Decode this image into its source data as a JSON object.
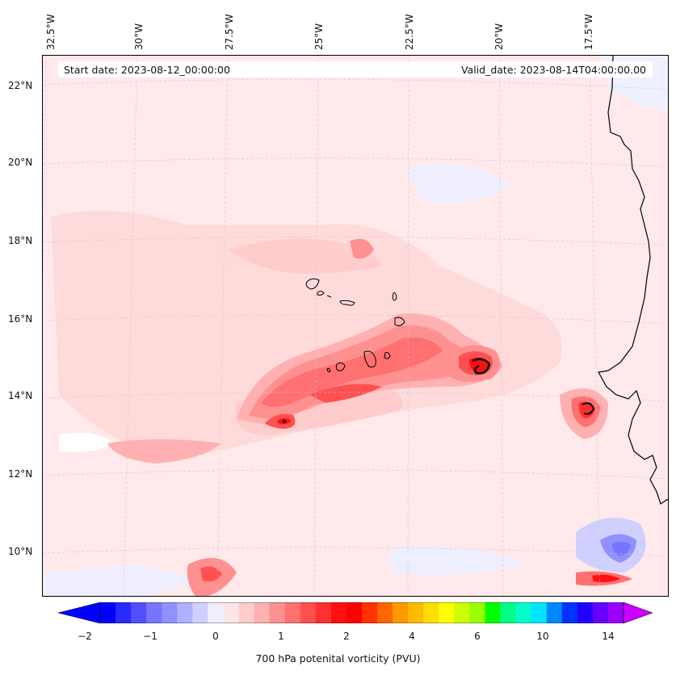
{
  "header": {
    "start_date": "Start date: 2023-08-12_00:00:00",
    "valid_date": "Valid_date: 2023-08-14T04:00:00.00"
  },
  "longitude_labels": [
    "32.5°W",
    "30°W",
    "27.5°W",
    "25°W",
    "22.5°W",
    "20°W",
    "17.5°W"
  ],
  "latitude_labels": [
    "22°N",
    "20°N",
    "18°N",
    "16°N",
    "14°N",
    "12°N",
    "10°N"
  ],
  "colorbar": {
    "label": "700 hPa potenital vorticity (PVU)",
    "ticks": [
      "−2",
      "−1",
      "0",
      "1",
      "2",
      "4",
      "6",
      "10",
      "14"
    ],
    "colors": [
      "#0000ff",
      "#2a2aff",
      "#5050ff",
      "#7575ff",
      "#9090ff",
      "#b0b0ff",
      "#d0d0ff",
      "#eeeeff",
      "#ffe6e6",
      "#ffcccc",
      "#ffb0b0",
      "#ff9090",
      "#ff7070",
      "#ff5050",
      "#ff3030",
      "#ff1010",
      "#ff0000",
      "#ff3300",
      "#ff6600",
      "#ff9900",
      "#ffbb00",
      "#ffdd00",
      "#ffff00",
      "#ccff00",
      "#99ff00",
      "#00ff00",
      "#00ff88",
      "#00ffcc",
      "#00e5ff",
      "#0088ff",
      "#0033ff",
      "#2200ff",
      "#6600ff",
      "#9900ff"
    ],
    "extend_low_color": "#0000ff",
    "extend_high_color": "#cc00ff"
  }
}
